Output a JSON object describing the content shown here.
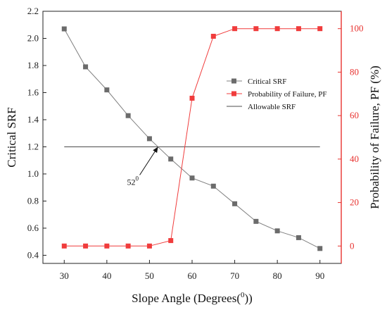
{
  "chart_data": {
    "type": "line",
    "xlabel": "Slope Angle (Degrees(",
    "xlabel_sup": "0",
    "xlabel_end": "))",
    "ylabel_left": "Critical SRF",
    "ylabel_right": "Probability of Failure, PF (%)",
    "xlim": [
      25,
      95
    ],
    "ylim_left": [
      0.34,
      2.2
    ],
    "ylim_right": [
      -8,
      108
    ],
    "x_ticks": [
      30,
      40,
      50,
      60,
      70,
      80,
      90
    ],
    "y_left_ticks": [
      "0.4",
      "0.6",
      "0.8",
      "1.0",
      "1.2",
      "1.4",
      "1.6",
      "1.8",
      "2.0",
      "2.2"
    ],
    "y_right_ticks": [
      0,
      20,
      40,
      60,
      80,
      100
    ],
    "x": [
      30,
      35,
      40,
      45,
      50,
      55,
      60,
      65,
      70,
      75,
      80,
      85,
      90
    ],
    "series": [
      {
        "name": "Critical SRF",
        "axis": "left",
        "color": "#808080",
        "marker": "square",
        "values": [
          2.07,
          1.79,
          1.62,
          1.43,
          1.26,
          1.11,
          0.97,
          0.91,
          0.78,
          0.65,
          0.58,
          0.53,
          0.45
        ]
      },
      {
        "name": "Probability of Failure, PF",
        "axis": "right",
        "color": "#f03c3c",
        "marker": "square",
        "values": [
          0,
          0,
          0,
          0,
          0,
          2.5,
          68,
          96.5,
          100,
          100,
          100,
          100,
          100
        ]
      },
      {
        "name": "Allowable SRF",
        "axis": "left",
        "color": "#111111",
        "style": "thin",
        "value": 1.2
      }
    ],
    "annotation": {
      "text": "52",
      "sup": "0",
      "x": 52,
      "y": 1.2
    },
    "legend_position": "right-center"
  }
}
